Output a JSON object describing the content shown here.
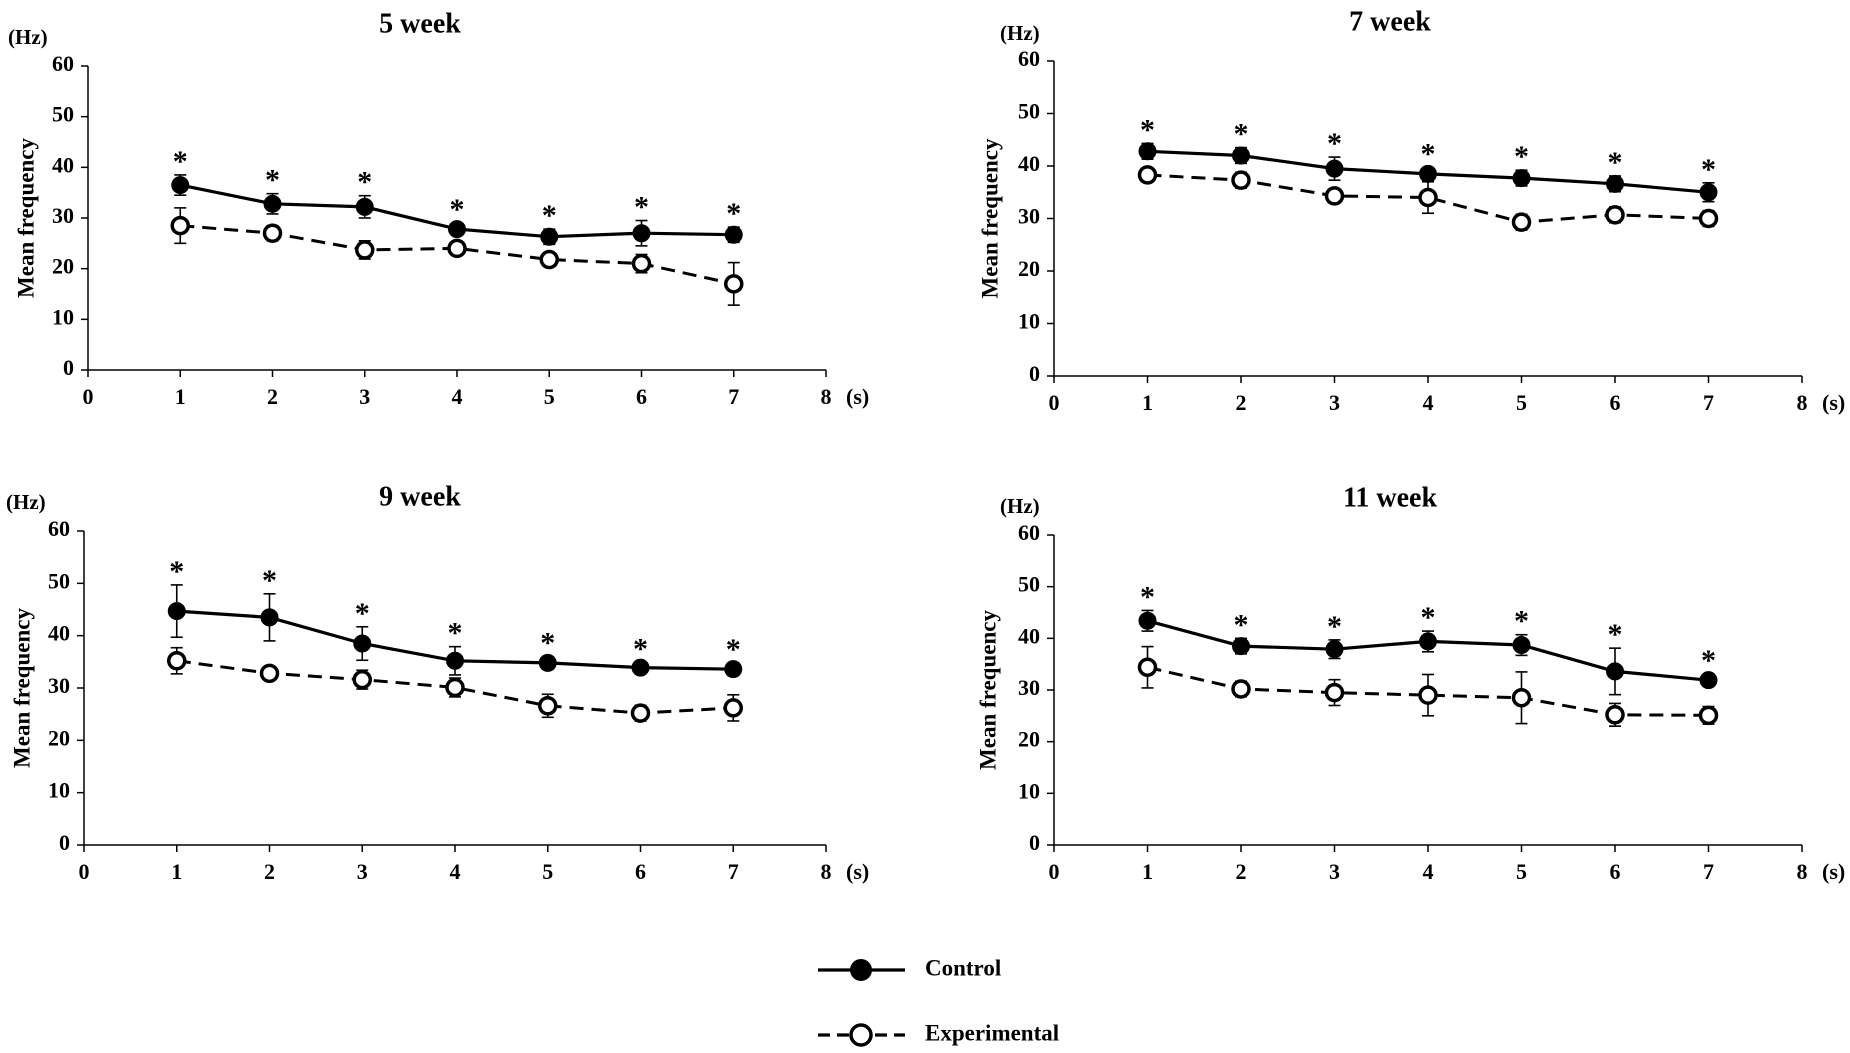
{
  "chart_data": [
    {
      "type": "line",
      "title": "5 week",
      "xlabel": "(s)",
      "ylabel": "Mean frequency",
      "yunit": "(Hz)",
      "xlim": [
        0,
        8
      ],
      "ylim": [
        0,
        60
      ],
      "xticks": [
        "0",
        "1",
        "2",
        "3",
        "4",
        "5",
        "6",
        "7",
        "8"
      ],
      "yticks": [
        "0",
        "10",
        "20",
        "30",
        "40",
        "50",
        "60"
      ],
      "x": [
        1,
        2,
        3,
        4,
        5,
        6,
        7
      ],
      "series": [
        {
          "name": "Control",
          "values": [
            36.5,
            32.8,
            32.2,
            27.8,
            26.3,
            27.0,
            26.7
          ],
          "errors": [
            2.0,
            2.0,
            2.2,
            1.2,
            1.5,
            2.5,
            1.5
          ]
        },
        {
          "name": "Experimental",
          "values": [
            28.5,
            27.0,
            23.7,
            24.0,
            21.8,
            21.0,
            17.0
          ],
          "errors": [
            3.5,
            1.5,
            1.8,
            1.0,
            1.0,
            1.8,
            4.2
          ]
        }
      ],
      "significance": [
        "*",
        "*",
        "*",
        "*",
        "*",
        "*",
        "*"
      ]
    },
    {
      "type": "line",
      "title": "7 week",
      "xlabel": "(s)",
      "ylabel": "Mean frequency",
      "yunit": "(Hz)",
      "xlim": [
        0,
        8
      ],
      "ylim": [
        0,
        60
      ],
      "xticks": [
        "0",
        "1",
        "2",
        "3",
        "4",
        "5",
        "6",
        "7",
        "8"
      ],
      "yticks": [
        "0",
        "10",
        "20",
        "30",
        "40",
        "50",
        "60"
      ],
      "x": [
        1,
        2,
        3,
        4,
        5,
        6,
        7
      ],
      "series": [
        {
          "name": "Control",
          "values": [
            42.8,
            42.0,
            39.5,
            38.5,
            37.7,
            36.6,
            35.0
          ],
          "errors": [
            1.5,
            1.5,
            2.2,
            1.2,
            1.5,
            1.5,
            1.8
          ]
        },
        {
          "name": "Experimental",
          "values": [
            38.3,
            37.3,
            34.3,
            34.0,
            29.3,
            30.7,
            30.0
          ],
          "errors": [
            0.8,
            1.5,
            1.0,
            3.0,
            1.5,
            1.5,
            1.5
          ]
        }
      ],
      "significance": [
        "*",
        "*",
        "*",
        "*",
        "*",
        "*",
        "*"
      ]
    },
    {
      "type": "line",
      "title": "9 week",
      "xlabel": "(s)",
      "ylabel": "Mean frequency",
      "yunit": "(Hz)",
      "xlim": [
        0,
        8
      ],
      "ylim": [
        0,
        60
      ],
      "xticks": [
        "0",
        "1",
        "2",
        "3",
        "4",
        "5",
        "6",
        "7",
        "8"
      ],
      "yticks": [
        "0",
        "10",
        "20",
        "30",
        "40",
        "50",
        "60"
      ],
      "x": [
        1,
        2,
        3,
        4,
        5,
        6,
        7
      ],
      "series": [
        {
          "name": "Control",
          "values": [
            44.7,
            43.5,
            38.5,
            35.2,
            34.8,
            33.9,
            33.6
          ],
          "errors": [
            5.0,
            4.5,
            3.2,
            2.7,
            1.2,
            1.0,
            1.2
          ]
        },
        {
          "name": "Experimental",
          "values": [
            35.2,
            32.8,
            31.6,
            30.1,
            26.6,
            25.2,
            26.2
          ],
          "errors": [
            2.5,
            0.8,
            1.8,
            1.8,
            2.2,
            1.5,
            2.5
          ]
        }
      ],
      "significance": [
        "*",
        "*",
        "*",
        "*",
        "*",
        "*",
        "*"
      ]
    },
    {
      "type": "line",
      "title": "11 week",
      "xlabel": "(s)",
      "ylabel": "Mean frequency",
      "yunit": "(Hz)",
      "xlim": [
        0,
        8
      ],
      "ylim": [
        0,
        60
      ],
      "xticks": [
        "0",
        "1",
        "2",
        "3",
        "4",
        "5",
        "6",
        "7",
        "8"
      ],
      "yticks": [
        "0",
        "10",
        "20",
        "30",
        "40",
        "50",
        "60"
      ],
      "x": [
        1,
        2,
        3,
        4,
        5,
        6,
        7
      ],
      "series": [
        {
          "name": "Control",
          "values": [
            43.4,
            38.5,
            37.9,
            39.4,
            38.7,
            33.6,
            31.9
          ],
          "errors": [
            2.0,
            1.5,
            1.8,
            2.0,
            2.0,
            4.5,
            1.2
          ]
        },
        {
          "name": "Experimental",
          "values": [
            34.4,
            30.2,
            29.5,
            29.0,
            28.5,
            25.2,
            25.1
          ],
          "errors": [
            4.0,
            1.5,
            2.5,
            4.0,
            5.0,
            2.2,
            1.7
          ]
        }
      ],
      "significance": [
        "*",
        "*",
        "*",
        "*",
        "*",
        "*",
        "*"
      ]
    }
  ],
  "legend": {
    "entries": [
      {
        "label": "Control",
        "marker": "filled-circle",
        "line": "solid"
      },
      {
        "label": "Experimental",
        "marker": "open-circle",
        "line": "dashed"
      }
    ]
  }
}
